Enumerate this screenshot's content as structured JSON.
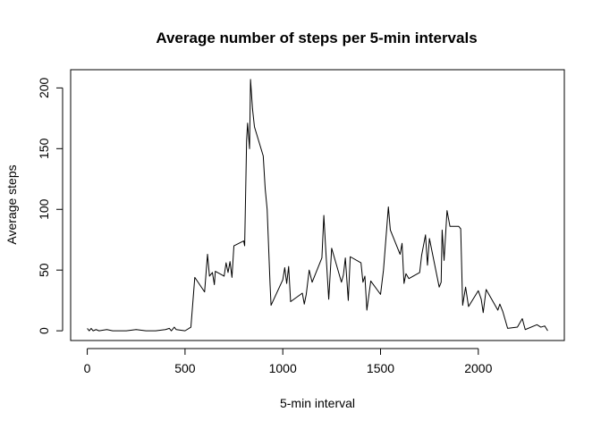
{
  "chart_data": {
    "type": "line",
    "title": "Average number of steps per 5-min intervals",
    "xlabel": "5-min interval",
    "ylabel": "Average steps",
    "xlim": [
      -85,
      2440
    ],
    "ylim": [
      -8,
      215
    ],
    "xticks": [
      0,
      500,
      1000,
      1500,
      2000
    ],
    "yticks": [
      0,
      50,
      100,
      150,
      200
    ],
    "grid": false,
    "line_color": "#000000",
    "series": [
      {
        "x": [
          0,
          10,
          20,
          30,
          45,
          60,
          100,
          130,
          200,
          250,
          300,
          350,
          400,
          420,
          430,
          445,
          455,
          500,
          530,
          550,
          600,
          615,
          625,
          640,
          650,
          655,
          700,
          710,
          720,
          730,
          740,
          750,
          800,
          805,
          815,
          820,
          830,
          835,
          845,
          855,
          900,
          910,
          920,
          935,
          940,
          1000,
          1010,
          1020,
          1030,
          1040,
          1100,
          1110,
          1120,
          1135,
          1150,
          1200,
          1210,
          1220,
          1235,
          1250,
          1300,
          1310,
          1320,
          1335,
          1345,
          1400,
          1410,
          1420,
          1430,
          1450,
          1500,
          1515,
          1540,
          1550,
          1600,
          1610,
          1620,
          1630,
          1645,
          1700,
          1710,
          1730,
          1740,
          1750,
          1800,
          1810,
          1815,
          1825,
          1840,
          1855,
          1900,
          1910,
          1920,
          1935,
          1950,
          2000,
          2015,
          2025,
          2040,
          2100,
          2110,
          2125,
          2150,
          2200,
          2225,
          2240,
          2300,
          2320,
          2340,
          2355
        ],
        "y": [
          2,
          0,
          2,
          0,
          1,
          0,
          1,
          0,
          0,
          1,
          0,
          0,
          1,
          2,
          0,
          3,
          1,
          0,
          3,
          44,
          32,
          63,
          45,
          48,
          38,
          49,
          45,
          56,
          48,
          57,
          44,
          70,
          74,
          70,
          157,
          171,
          150,
          207,
          183,
          168,
          144,
          117,
          100,
          38,
          21,
          42,
          52,
          39,
          53,
          24,
          31,
          22,
          30,
          50,
          40,
          60,
          95,
          66,
          26,
          68,
          40,
          46,
          60,
          25,
          61,
          56,
          40,
          45,
          17,
          41,
          30,
          50,
          102,
          83,
          63,
          72,
          39,
          47,
          43,
          48,
          62,
          79,
          54,
          76,
          36,
          40,
          83,
          58,
          99,
          86,
          86,
          84,
          21,
          36,
          20,
          33,
          26,
          15,
          34,
          17,
          22,
          16,
          2,
          3,
          10,
          1,
          5,
          3,
          4,
          0
        ]
      }
    ]
  }
}
